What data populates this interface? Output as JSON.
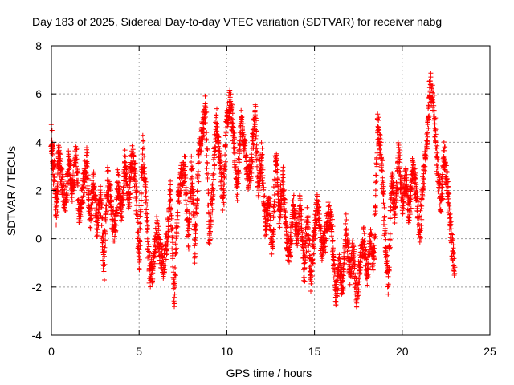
{
  "chart_data": {
    "type": "scatter",
    "title": "Day 183 of 2025, Sidereal Day-to-day VTEC variation (SDTVAR) for receiver nabg",
    "xlabel": "GPS time / hours",
    "ylabel": "SDTVAR / TECUs",
    "xlim": [
      0,
      25
    ],
    "ylim": [
      -4,
      8
    ],
    "xticks": [
      0,
      5,
      10,
      15,
      20,
      25
    ],
    "yticks": [
      -4,
      -2,
      0,
      2,
      4,
      6,
      8
    ],
    "grid": true,
    "marker": "+",
    "color": "#ff0000",
    "trend": [
      [
        0.0,
        4.3
      ],
      [
        0.1,
        3.0
      ],
      [
        0.3,
        1.0
      ],
      [
        0.4,
        3.5
      ],
      [
        0.6,
        2.5
      ],
      [
        0.8,
        1.2
      ],
      [
        1.0,
        3.2
      ],
      [
        1.2,
        2.0
      ],
      [
        1.4,
        3.6
      ],
      [
        1.6,
        1.0
      ],
      [
        1.8,
        2.0
      ],
      [
        2.0,
        3.4
      ],
      [
        2.2,
        0.8
      ],
      [
        2.4,
        2.5
      ],
      [
        2.6,
        0.4
      ],
      [
        2.8,
        2.0
      ],
      [
        3.0,
        -1.2
      ],
      [
        3.2,
        2.5
      ],
      [
        3.4,
        1.5
      ],
      [
        3.6,
        0.0
      ],
      [
        3.8,
        2.5
      ],
      [
        4.0,
        1.0
      ],
      [
        4.2,
        3.2
      ],
      [
        4.4,
        1.5
      ],
      [
        4.6,
        3.5
      ],
      [
        4.8,
        2.5
      ],
      [
        5.0,
        -1.0
      ],
      [
        5.2,
        3.8
      ],
      [
        5.4,
        1.5
      ],
      [
        5.6,
        -1.5
      ],
      [
        5.8,
        -1.2
      ],
      [
        6.0,
        0.5
      ],
      [
        6.2,
        -0.5
      ],
      [
        6.4,
        -1.2
      ],
      [
        6.6,
        0.0
      ],
      [
        6.8,
        2.0
      ],
      [
        7.0,
        -2.5
      ],
      [
        7.2,
        1.5
      ],
      [
        7.4,
        2.5
      ],
      [
        7.6,
        3.0
      ],
      [
        7.8,
        0.0
      ],
      [
        8.0,
        3.0
      ],
      [
        8.2,
        -0.5
      ],
      [
        8.4,
        3.5
      ],
      [
        8.6,
        4.5
      ],
      [
        8.8,
        5.5
      ],
      [
        9.0,
        0.0
      ],
      [
        9.2,
        2.0
      ],
      [
        9.4,
        5.0
      ],
      [
        9.6,
        3.5
      ],
      [
        9.8,
        1.5
      ],
      [
        10.0,
        5.0
      ],
      [
        10.2,
        5.8
      ],
      [
        10.4,
        4.0
      ],
      [
        10.6,
        2.0
      ],
      [
        10.8,
        4.8
      ],
      [
        11.0,
        4.0
      ],
      [
        11.2,
        2.5
      ],
      [
        11.4,
        3.0
      ],
      [
        11.6,
        5.5
      ],
      [
        11.8,
        2.0
      ],
      [
        12.0,
        3.5
      ],
      [
        12.2,
        0.5
      ],
      [
        12.4,
        1.5
      ],
      [
        12.6,
        -0.5
      ],
      [
        12.8,
        3.5
      ],
      [
        13.0,
        1.0
      ],
      [
        13.2,
        2.5
      ],
      [
        13.4,
        0.0
      ],
      [
        13.6,
        -0.8
      ],
      [
        13.8,
        1.5
      ],
      [
        14.0,
        0.0
      ],
      [
        14.2,
        1.5
      ],
      [
        14.4,
        -1.5
      ],
      [
        14.6,
        1.0
      ],
      [
        14.8,
        -1.8
      ],
      [
        15.0,
        0.5
      ],
      [
        15.2,
        1.5
      ],
      [
        15.4,
        -0.5
      ],
      [
        15.6,
        0.0
      ],
      [
        15.8,
        1.0
      ],
      [
        16.0,
        0.5
      ],
      [
        16.2,
        -2.5
      ],
      [
        16.4,
        -1.0
      ],
      [
        16.6,
        -2.0
      ],
      [
        16.8,
        0.5
      ],
      [
        17.0,
        -1.5
      ],
      [
        17.2,
        -0.5
      ],
      [
        17.4,
        -2.5
      ],
      [
        17.6,
        -1.0
      ],
      [
        17.8,
        0.0
      ],
      [
        18.0,
        -1.5
      ],
      [
        18.2,
        0.0
      ],
      [
        18.4,
        -1.0
      ],
      [
        18.6,
        4.8
      ],
      [
        18.8,
        3.5
      ],
      [
        19.0,
        0.5
      ],
      [
        19.2,
        -2.0
      ],
      [
        19.4,
        2.5
      ],
      [
        19.6,
        1.0
      ],
      [
        19.8,
        3.5
      ],
      [
        20.0,
        1.5
      ],
      [
        20.2,
        2.5
      ],
      [
        20.4,
        1.0
      ],
      [
        20.6,
        3.0
      ],
      [
        20.8,
        2.0
      ],
      [
        21.0,
        0.0
      ],
      [
        21.2,
        2.5
      ],
      [
        21.4,
        4.0
      ],
      [
        21.6,
        6.4
      ],
      [
        21.8,
        5.5
      ],
      [
        22.0,
        3.0
      ],
      [
        22.2,
        1.5
      ],
      [
        22.4,
        3.5
      ],
      [
        22.6,
        2.0
      ],
      [
        22.8,
        0.0
      ],
      [
        23.0,
        -1.2
      ]
    ]
  }
}
